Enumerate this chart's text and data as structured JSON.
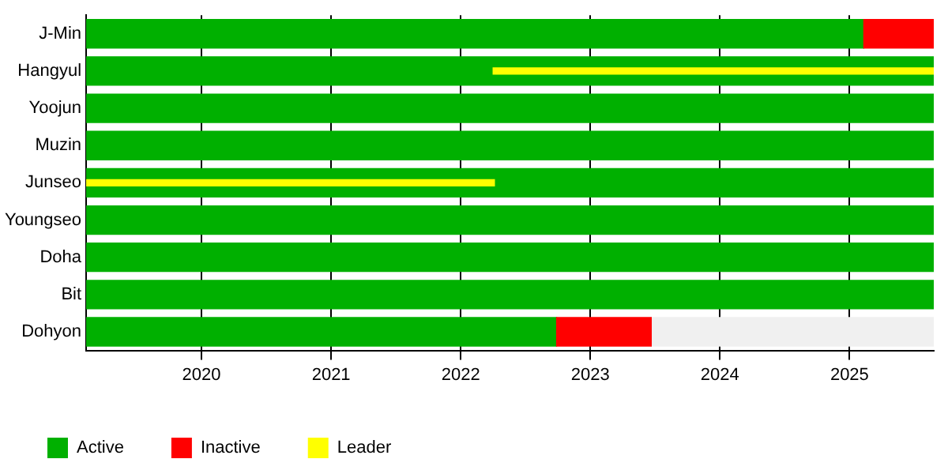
{
  "chart_data": {
    "type": "bar",
    "orientation": "horizontal",
    "categories": [
      "J-Min",
      "Hangyul",
      "Yoojun",
      "Muzin",
      "Junseo",
      "Youngseo",
      "Doha",
      "Bit",
      "Dohyon"
    ],
    "series": [
      {
        "color": "#f0f0f0",
        "base": [
          null,
          null,
          null,
          null,
          null,
          null,
          null,
          null,
          2023.47
        ],
        "values": [
          null,
          null,
          null,
          null,
          null,
          null,
          null,
          null,
          2.18
        ]
      },
      {
        "name": "Active",
        "color": "#00b000",
        "base": [
          2019.11,
          2019.11,
          2019.11,
          2019.11,
          2019.11,
          2019.11,
          2019.11,
          2019.11,
          2019.11
        ],
        "values": [
          6.0,
          6.54,
          6.54,
          6.54,
          6.54,
          6.54,
          6.54,
          6.54,
          3.63
        ]
      },
      {
        "name": "Inactive",
        "color": "#ff0000",
        "base": [
          2025.11,
          null,
          null,
          null,
          null,
          null,
          null,
          null,
          2022.74
        ],
        "values": [
          0.54,
          null,
          null,
          null,
          null,
          null,
          null,
          null,
          0.73
        ]
      },
      {
        "name": "Leader",
        "color": "#ffff00",
        "base": [
          null,
          2022.25,
          null,
          null,
          2019.11,
          null,
          null,
          null,
          null
        ],
        "values": [
          null,
          3.4,
          null,
          null,
          3.15,
          null,
          null,
          null,
          null
        ]
      }
    ],
    "xlim": [
      2019.11,
      2025.65
    ],
    "xticks": [
      2020,
      2021,
      2022,
      2023,
      2024,
      2025
    ],
    "grid": "x",
    "legend": "bottom left"
  }
}
